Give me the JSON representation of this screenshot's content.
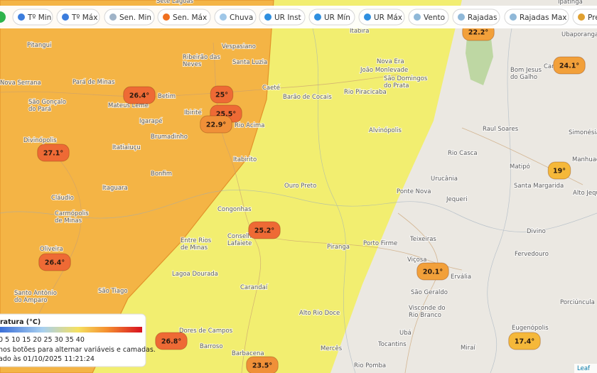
{
  "toolbar": {
    "buttons": [
      "Tº Min",
      "Tº Máx",
      "Sen. Min",
      "Sen. Máx",
      "Chuva",
      "UR Inst",
      "UR Mín",
      "UR Máx",
      "Vento",
      "Rajadas",
      "Rajadas Max",
      "Pre"
    ]
  },
  "markers": [
    {
      "label": "22.2°",
      "color": "#f2a03a"
    },
    {
      "label": "24.1°",
      "color": "#f2a03a"
    },
    {
      "label": "26.4°",
      "color": "#ee6a35"
    },
    {
      "label": "25°",
      "color": "#ee6a35"
    },
    {
      "label": "25.5°",
      "color": "#ee6a35"
    },
    {
      "label": "22.9°",
      "color": "#f09038"
    },
    {
      "label": "27.1°",
      "color": "#ee6a35"
    },
    {
      "label": "19°",
      "color": "#f5b83a"
    },
    {
      "label": "25.2°",
      "color": "#ee6a35"
    },
    {
      "label": "26.4°",
      "color": "#ee6a35"
    },
    {
      "label": "20.1°",
      "color": "#f2a03a"
    },
    {
      "label": "26.8°",
      "color": "#ee6a35"
    },
    {
      "label": "17.4°",
      "color": "#f5b83a"
    },
    {
      "label": "23.5°",
      "color": "#f09038"
    }
  ],
  "places": [
    [
      "Sete Lagoas"
    ],
    [
      "Itabira"
    ],
    [
      "Ipatinga"
    ],
    [
      "Ubaporanga"
    ],
    [
      "Vespasiano"
    ],
    [
      "Ribeirão das",
      "Neves"
    ],
    [
      "Santa Luzia"
    ],
    [
      "Pitangui"
    ],
    [
      "João Monlevade"
    ],
    [
      "Nova Era"
    ],
    [
      "São Domingos",
      "do Prata"
    ],
    [
      "Bom Jesus",
      "do Galho"
    ],
    [
      "Carat"
    ],
    [
      "Pará de Minas"
    ],
    [
      "Nova Serrana"
    ],
    [
      "Betim"
    ],
    [
      "Caeté"
    ],
    [
      "Barão de Cocais"
    ],
    [
      "Rio Piracicaba"
    ],
    [
      "São Gonçalo",
      "do Pará"
    ],
    [
      "Mateus Leme"
    ],
    [
      "Igarapé"
    ],
    [
      "Ibirité"
    ],
    [
      "Rio Acima"
    ],
    [
      "Brumadinho"
    ],
    [
      "Divinópolis"
    ],
    [
      "Raul Soares"
    ],
    [
      "Simonésia"
    ],
    [
      "Itatiaiuçu"
    ],
    [
      "Itabirito"
    ],
    [
      "Rio Casca"
    ],
    [
      "Alvinópolis"
    ],
    [
      "Matipó"
    ],
    [
      "Manhuaçu"
    ],
    [
      "Bonfim"
    ],
    [
      "Urucânia"
    ],
    [
      "Santa Margarida"
    ],
    [
      "Alto Jequi"
    ],
    [
      "Itaguara"
    ],
    [
      "Ouro Preto"
    ],
    [
      "Ponte Nova"
    ],
    [
      "Jequeri"
    ],
    [
      "Cláudio"
    ],
    [
      "Congonhas"
    ],
    [
      "Carmópolis",
      "de Minas"
    ],
    [
      "Teixeiras"
    ],
    [
      "Divino"
    ],
    [
      "Conselheiro",
      "Lafaiete"
    ],
    [
      "Entre Rios",
      "de Minas"
    ],
    [
      "Piranga"
    ],
    [
      "Porto Firme"
    ],
    [
      "Fervedouro"
    ],
    [
      "Oliveira"
    ],
    [
      "Viçosa"
    ],
    [
      "Ervália"
    ],
    [
      "São Tiago"
    ],
    [
      "Santo Antônio",
      "do Amparo"
    ],
    [
      "Lagoa Dourada"
    ],
    [
      "Carandaí"
    ],
    [
      "São Geraldo"
    ],
    [
      "Alto Rio Doce"
    ],
    [
      "Visconde do",
      "Rio Branco"
    ],
    [
      "Porciúncula"
    ],
    [
      "Ubá"
    ],
    [
      "Dores de Campos"
    ],
    [
      "Tocantins"
    ],
    [
      "Barroso"
    ],
    [
      "Mercês"
    ],
    [
      "Miraí"
    ],
    [
      "Eugenópolis"
    ],
    [
      "Barbacena"
    ],
    [
      "Rio Pomba"
    ]
  ],
  "legend": {
    "title": "ratura (°C)",
    "scale": "0 5 10 15 20 25 30 35 40",
    "hint": "nos botões para alternar variáveis e camadas.",
    "updated": "ado às 01/10/2025 11:21:24"
  },
  "attribution": "Leaf"
}
